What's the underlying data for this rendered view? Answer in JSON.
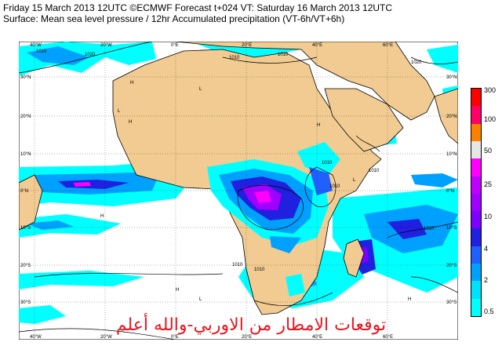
{
  "header": {
    "line1": "Friday 15 March 2013 12UTC ©ECMWF Forecast t+024 VT: Saturday 16 March 2013 12UTC",
    "line2": "Surface: Mean sea level pressure / 12hr Accumulated precipitation (VT-6h/VT+6h)"
  },
  "map": {
    "lon_top": [
      "40°W",
      "20°W",
      "0°E",
      "20°E",
      "40°E",
      "60°E"
    ],
    "lon_bottom": [
      "40°W",
      "20°W",
      "0°E",
      "20°E",
      "40°E",
      "60°E"
    ],
    "lat_left": [
      "30°N",
      "20°N",
      "10°N",
      "0°N",
      "10°S",
      "20°S",
      "30°S"
    ],
    "lat_right": [
      "30°N",
      "20°N",
      "10°N",
      "0°N",
      "10°S",
      "20°S",
      "30°S"
    ],
    "isobar_labels": [
      "1010",
      "1010",
      "1010",
      "1010",
      "1010",
      "1010",
      "1010",
      "1010",
      "1010",
      "1020",
      "1020"
    ],
    "pressure_centers": [
      "H",
      "L",
      "L",
      "H",
      "H",
      "L",
      "H",
      "H",
      "L",
      "H"
    ],
    "colors": {
      "ocean": "#ffffff",
      "land": "#f1cb91",
      "coast": "#000000",
      "isobar": "#000000"
    }
  },
  "legend": {
    "labels": [
      "300",
      "100",
      "50",
      "25",
      "10",
      "4",
      "2",
      "0.5"
    ],
    "colors": [
      "#ff0000",
      "#ff0066",
      "#ff8000",
      "#e6e6e6",
      "#ff00ff",
      "#c000ff",
      "#a000ff",
      "#7b00ff",
      "#2020e0",
      "#2060ff",
      "#00a0ff",
      "#00e0ff",
      "#00ffff"
    ]
  },
  "overlay_text": "توقعات الامطار من الاوربي-والله أعلم"
}
